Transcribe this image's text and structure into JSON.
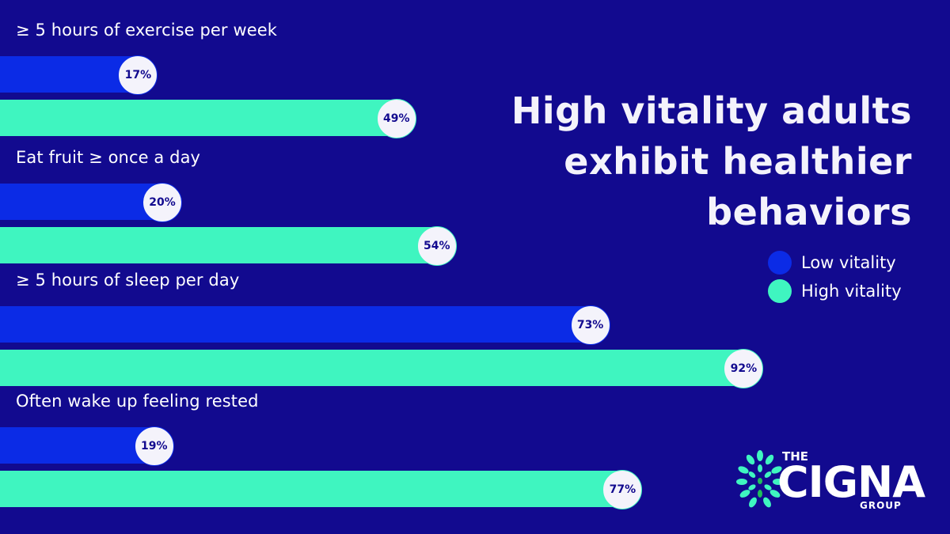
{
  "colors": {
    "background": "#120a8f",
    "low": "#0b2be6",
    "high": "#3ff5c0",
    "bubble": "#f4f3fb",
    "bubble_text": "#120a8f"
  },
  "title": "High vitality adults exhibit healthier behaviors",
  "title_lines": [
    "High vitality adults",
    "exhibit healthier",
    "behaviors"
  ],
  "legend": [
    {
      "label": "Low vitality",
      "color": "#0b2be6"
    },
    {
      "label": "High vitality",
      "color": "#3ff5c0"
    }
  ],
  "logo": {
    "the": "THE",
    "word": "CIGNA",
    "group": "GROUP"
  },
  "chart_data": {
    "type": "bar",
    "orientation": "horizontal",
    "title": "High vitality adults exhibit healthier behaviors",
    "categories": [
      "≥ 5 hours of exercise per week",
      "Eat fruit ≥ once a day",
      "≥ 5 hours of sleep per day",
      "Often wake up feeling rested"
    ],
    "series": [
      {
        "name": "Low vitality",
        "values": [
          17,
          20,
          73,
          19
        ],
        "labels": [
          "17%",
          "20%",
          "73%",
          "19%"
        ]
      },
      {
        "name": "High vitality",
        "values": [
          49,
          54,
          92,
          77
        ],
        "labels": [
          "49%",
          "54%",
          "92%",
          "77%"
        ]
      }
    ],
    "unit": "%",
    "xlim": [
      0,
      100
    ],
    "legend_position": "right"
  }
}
